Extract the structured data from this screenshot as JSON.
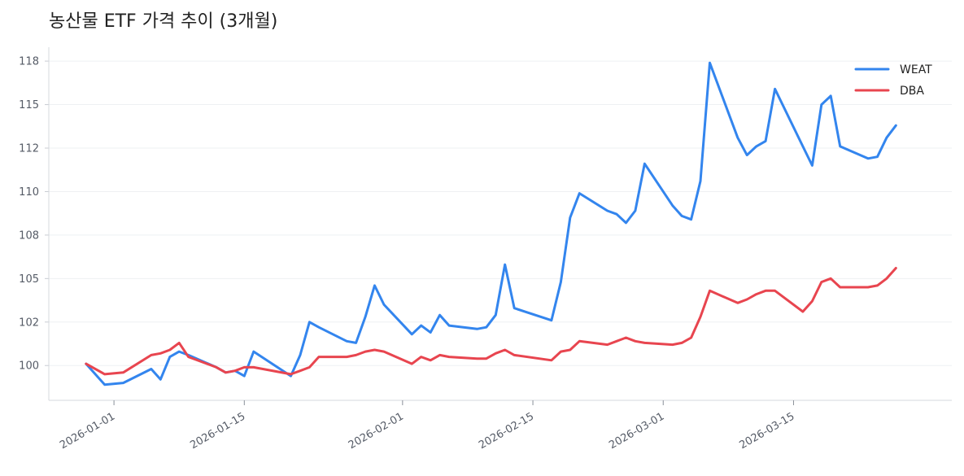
{
  "chart_data": {
    "type": "line",
    "title": "농산물 ETF 가격 추이 (3개월)",
    "xlabel": "",
    "ylabel": "",
    "x_tick_labels": [
      "2026-01-01",
      "2026-01-15",
      "2026-02-01",
      "2026-02-15",
      "2026-03-01",
      "2026-03-15"
    ],
    "x_ticks": [
      "2026-01-01",
      "2026-01-15",
      "2026-02-01",
      "2026-02-15",
      "2026-03-01",
      "2026-03-15"
    ],
    "y_ticks": [
      100,
      102.5,
      105,
      107.5,
      110,
      112.5,
      115,
      117.5
    ],
    "y_tick_labels": [
      "100",
      "102",
      "105",
      "108",
      "110",
      "112",
      "115",
      "118"
    ],
    "xlim": [
      "2025-12-25",
      "2026-04-01"
    ],
    "ylim": [
      98,
      118.3
    ],
    "grid": "horizontal",
    "legend_position": "top-right",
    "series": [
      {
        "name": "WEAT",
        "color": "#3385ee",
        "x": [
          "2025-12-29",
          "2025-12-31",
          "2026-01-02",
          "2026-01-05",
          "2026-01-06",
          "2026-01-07",
          "2026-01-08",
          "2026-01-09",
          "2026-01-12",
          "2026-01-13",
          "2026-01-14",
          "2026-01-15",
          "2026-01-16",
          "2026-01-20",
          "2026-01-21",
          "2026-01-22",
          "2026-01-23",
          "2026-01-26",
          "2026-01-27",
          "2026-01-28",
          "2026-01-29",
          "2026-01-30",
          "2026-02-02",
          "2026-02-03",
          "2026-02-04",
          "2026-02-05",
          "2026-02-06",
          "2026-02-09",
          "2026-02-10",
          "2026-02-11",
          "2026-02-12",
          "2026-02-13",
          "2026-02-17",
          "2026-02-18",
          "2026-02-19",
          "2026-02-20",
          "2026-02-23",
          "2026-02-24",
          "2026-02-25",
          "2026-02-26",
          "2026-02-27",
          "2026-03-02",
          "2026-03-03",
          "2026-03-04",
          "2026-03-05",
          "2026-03-06",
          "2026-03-09",
          "2026-03-10",
          "2026-03-11",
          "2026-03-12",
          "2026-03-13",
          "2026-03-16",
          "2026-03-17",
          "2026-03-18",
          "2026-03-19",
          "2026-03-20",
          "2026-03-23",
          "2026-03-24",
          "2026-03-25",
          "2026-03-26"
        ],
        "values": [
          100.1,
          98.9,
          99.0,
          99.8,
          99.2,
          100.5,
          100.8,
          100.6,
          99.9,
          99.6,
          99.7,
          99.4,
          100.8,
          99.4,
          100.6,
          102.5,
          102.2,
          101.4,
          101.3,
          102.8,
          104.6,
          103.5,
          101.8,
          102.3,
          101.9,
          102.9,
          102.3,
          102.1,
          102.2,
          102.9,
          105.8,
          103.3,
          102.6,
          104.8,
          108.5,
          109.9,
          108.9,
          108.7,
          108.2,
          108.9,
          111.6,
          109.2,
          108.6,
          108.4,
          110.6,
          117.4,
          113.1,
          112.1,
          112.6,
          112.9,
          115.9,
          112.6,
          111.5,
          115.0,
          115.5,
          112.6,
          111.9,
          112.0,
          113.1,
          113.8
        ]
      },
      {
        "name": "DBA",
        "color": "#e8454f",
        "x": [
          "2025-12-29",
          "2025-12-31",
          "2026-01-02",
          "2026-01-05",
          "2026-01-06",
          "2026-01-07",
          "2026-01-08",
          "2026-01-09",
          "2026-01-12",
          "2026-01-13",
          "2026-01-14",
          "2026-01-15",
          "2026-01-16",
          "2026-01-20",
          "2026-01-21",
          "2026-01-22",
          "2026-01-23",
          "2026-01-26",
          "2026-01-27",
          "2026-01-28",
          "2026-01-29",
          "2026-01-30",
          "2026-02-02",
          "2026-02-03",
          "2026-02-04",
          "2026-02-05",
          "2026-02-06",
          "2026-02-09",
          "2026-02-10",
          "2026-02-11",
          "2026-02-12",
          "2026-02-13",
          "2026-02-17",
          "2026-02-18",
          "2026-02-19",
          "2026-02-20",
          "2026-02-23",
          "2026-02-24",
          "2026-02-25",
          "2026-02-26",
          "2026-02-27",
          "2026-03-02",
          "2026-03-03",
          "2026-03-04",
          "2026-03-05",
          "2026-03-06",
          "2026-03-09",
          "2026-03-10",
          "2026-03-11",
          "2026-03-12",
          "2026-03-13",
          "2026-03-16",
          "2026-03-17",
          "2026-03-18",
          "2026-03-19",
          "2026-03-20",
          "2026-03-23",
          "2026-03-24",
          "2026-03-25",
          "2026-03-26"
        ],
        "values": [
          100.1,
          99.5,
          99.6,
          100.6,
          100.7,
          100.9,
          101.3,
          100.5,
          99.9,
          99.6,
          99.7,
          99.9,
          99.9,
          99.5,
          99.7,
          99.9,
          100.5,
          100.5,
          100.6,
          100.8,
          100.9,
          100.8,
          100.1,
          100.5,
          100.3,
          100.6,
          100.5,
          100.4,
          100.4,
          100.7,
          100.9,
          100.6,
          100.3,
          100.8,
          100.9,
          101.4,
          101.2,
          101.4,
          101.6,
          101.4,
          101.3,
          101.2,
          101.3,
          101.6,
          102.8,
          104.3,
          103.6,
          103.8,
          104.1,
          104.3,
          104.3,
          103.1,
          103.7,
          104.8,
          105.0,
          104.5,
          104.5,
          104.6,
          105.0,
          105.6
        ]
      }
    ]
  }
}
